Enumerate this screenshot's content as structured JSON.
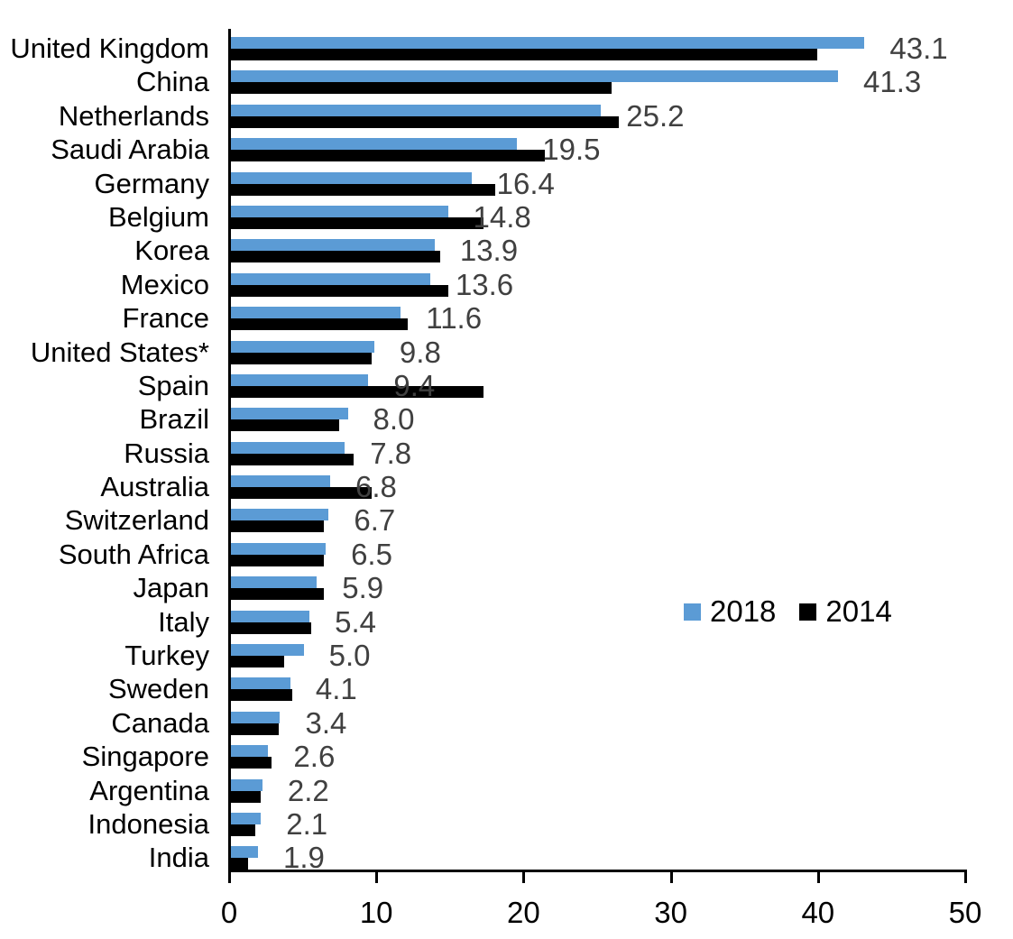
{
  "chart_data": {
    "type": "bar",
    "orientation": "horizontal",
    "title": "",
    "xlabel": "",
    "ylabel": "",
    "grid": false,
    "categories": [
      "United Kingdom",
      "China",
      "Netherlands",
      "Saudi Arabia",
      "Germany",
      "Belgium",
      "Korea",
      "Mexico",
      "France",
      "United States*",
      "Spain",
      "Brazil",
      "Russia",
      "Australia",
      "Switzerland",
      "South Africa",
      "Japan",
      "Italy",
      "Turkey",
      "Sweden",
      "Canada",
      "Singapore",
      "Argentina",
      "Indonesia",
      "India"
    ],
    "series": [
      {
        "name": "2018",
        "color": "#5B9BD5",
        "values": [
          43.1,
          41.3,
          25.2,
          19.5,
          16.4,
          14.8,
          13.9,
          13.6,
          11.6,
          9.8,
          9.4,
          8.0,
          7.8,
          6.8,
          6.7,
          6.5,
          5.9,
          5.4,
          5.0,
          4.1,
          3.4,
          2.6,
          2.2,
          2.1,
          1.9
        ]
      },
      {
        "name": "2014",
        "color": "#000000",
        "values": [
          39.9,
          25.9,
          26.4,
          21.4,
          18.0,
          17.2,
          14.3,
          14.8,
          12.1,
          9.6,
          17.2,
          7.4,
          8.4,
          9.6,
          6.4,
          6.4,
          6.4,
          5.5,
          3.7,
          4.2,
          3.3,
          2.8,
          2.1,
          1.7,
          1.2
        ]
      }
    ],
    "data_labels": {
      "for_series": "2018",
      "color": "#404040",
      "values": [
        "43.1",
        "41.3",
        "25.2",
        "19.5",
        "16.4",
        "14.8",
        "13.9",
        "13.6",
        "11.6",
        "9.8",
        "9.4",
        "8.0",
        "7.8",
        "6.8",
        "6.7",
        "6.5",
        "5.9",
        "5.4",
        "5.0",
        "4.1",
        "3.4",
        "2.6",
        "2.2",
        "2.1",
        "1.9"
      ]
    },
    "x_axis": {
      "range": [
        0,
        50
      ],
      "ticks": [
        "0",
        "10",
        "20",
        "30",
        "40",
        "50"
      ]
    },
    "legend": {
      "position": "middle-right",
      "items": [
        {
          "label": "2018",
          "color": "#5B9BD5"
        },
        {
          "label": "2014",
          "color": "#000000"
        }
      ]
    }
  }
}
